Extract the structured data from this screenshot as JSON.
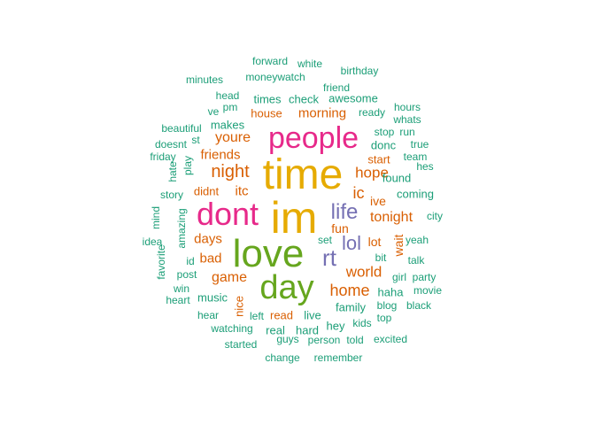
{
  "palette": {
    "teal": "#1b9e77",
    "orange": "#d95f02",
    "purple": "#7570b3",
    "magenta": "#e7298a",
    "green": "#66a61e",
    "gold": "#e6ab02"
  },
  "words": [
    {
      "text": "im",
      "color": "gold",
      "rank": 1
    },
    {
      "text": "time",
      "color": "gold",
      "rank": 2
    },
    {
      "text": "love",
      "color": "green",
      "rank": 3
    },
    {
      "text": "dont",
      "color": "magenta",
      "rank": 4
    },
    {
      "text": "day",
      "color": "green",
      "rank": 5
    },
    {
      "text": "people",
      "color": "magenta",
      "rank": 6
    },
    {
      "text": "rt",
      "color": "purple",
      "rank": 7
    },
    {
      "text": "life",
      "color": "purple",
      "rank": 8
    },
    {
      "text": "lol",
      "color": "purple",
      "rank": 9
    },
    {
      "text": "night",
      "color": "orange",
      "rank": 10
    },
    {
      "text": "home",
      "color": "orange",
      "rank": 11
    },
    {
      "text": "world",
      "color": "orange",
      "rank": 12
    },
    {
      "text": "hope",
      "color": "orange",
      "rank": 13
    },
    {
      "text": "tonight",
      "color": "orange",
      "rank": 14
    },
    {
      "text": "ic",
      "color": "orange",
      "rank": 15
    },
    {
      "text": "youre",
      "color": "orange",
      "rank": 16
    },
    {
      "text": "game",
      "color": "orange",
      "rank": 17
    },
    {
      "text": "days",
      "color": "orange",
      "rank": 18
    },
    {
      "text": "bad",
      "color": "orange",
      "rank": 19
    },
    {
      "text": "morning",
      "color": "orange",
      "rank": 20
    },
    {
      "text": "friends",
      "color": "orange",
      "rank": 21
    },
    {
      "text": "itc",
      "color": "orange",
      "rank": 22
    },
    {
      "text": "fun",
      "color": "orange",
      "rank": 23
    },
    {
      "text": "lot",
      "color": "orange",
      "rank": 24
    },
    {
      "text": "wait",
      "color": "orange",
      "rank": 25
    },
    {
      "text": "ive",
      "color": "orange",
      "rank": 26
    },
    {
      "text": "didnt",
      "color": "orange",
      "rank": 27
    },
    {
      "text": "house",
      "color": "orange",
      "rank": 28
    },
    {
      "text": "read",
      "color": "orange",
      "rank": 29
    },
    {
      "text": "nice",
      "color": "orange",
      "rank": 30
    },
    {
      "text": "start",
      "color": "orange",
      "rank": 31
    },
    {
      "text": "music",
      "color": "teal",
      "rank": 32
    },
    {
      "text": "family",
      "color": "teal",
      "rank": 33
    },
    {
      "text": "hard",
      "color": "teal",
      "rank": 34
    },
    {
      "text": "real",
      "color": "teal",
      "rank": 35
    },
    {
      "text": "live",
      "color": "teal",
      "rank": 36
    },
    {
      "text": "hey",
      "color": "teal",
      "rank": 37
    },
    {
      "text": "times",
      "color": "teal",
      "rank": 38
    },
    {
      "text": "check",
      "color": "teal",
      "rank": 39
    },
    {
      "text": "awesome",
      "color": "teal",
      "rank": 40
    },
    {
      "text": "makes",
      "color": "teal",
      "rank": 41
    },
    {
      "text": "amazing",
      "color": "teal",
      "rank": 42
    },
    {
      "text": "found",
      "color": "teal",
      "rank": 43
    },
    {
      "text": "coming",
      "color": "teal",
      "rank": 44
    },
    {
      "text": "haha",
      "color": "teal",
      "rank": 45
    },
    {
      "text": "donc",
      "color": "teal",
      "rank": 46
    },
    {
      "text": "stop",
      "color": "teal",
      "rank": 47
    },
    {
      "text": "run",
      "color": "teal",
      "rank": 48
    },
    {
      "text": "story",
      "color": "teal",
      "rank": 49
    },
    {
      "text": "left",
      "color": "teal",
      "rank": 50
    },
    {
      "text": "blog",
      "color": "teal",
      "rank": 51
    },
    {
      "text": "girl",
      "color": "teal",
      "rank": 52
    },
    {
      "text": "party",
      "color": "teal",
      "rank": 53
    },
    {
      "text": "kids",
      "color": "teal",
      "rank": 54
    },
    {
      "text": "post",
      "color": "teal",
      "rank": 55
    },
    {
      "text": "hear",
      "color": "teal",
      "rank": 56
    },
    {
      "text": "watching",
      "color": "teal",
      "rank": 57
    },
    {
      "text": "guys",
      "color": "teal",
      "rank": 58
    },
    {
      "text": "person",
      "color": "teal",
      "rank": 59
    },
    {
      "text": "told",
      "color": "teal",
      "rank": 60
    },
    {
      "text": "started",
      "color": "teal",
      "rank": 61
    },
    {
      "text": "excited",
      "color": "teal",
      "rank": 62
    },
    {
      "text": "change",
      "color": "teal",
      "rank": 63
    },
    {
      "text": "remember",
      "color": "teal",
      "rank": 64
    },
    {
      "text": "top",
      "color": "teal",
      "rank": 65
    },
    {
      "text": "black",
      "color": "teal",
      "rank": 66
    },
    {
      "text": "movie",
      "color": "teal",
      "rank": 67
    },
    {
      "text": "talk",
      "color": "teal",
      "rank": 68
    },
    {
      "text": "yeah",
      "color": "teal",
      "rank": 69
    },
    {
      "text": "bit",
      "color": "teal",
      "rank": 70
    },
    {
      "text": "set",
      "color": "teal",
      "rank": 71
    },
    {
      "text": "city",
      "color": "teal",
      "rank": 72
    },
    {
      "text": "team",
      "color": "teal",
      "rank": 73
    },
    {
      "text": "hes",
      "color": "teal",
      "rank": 74
    },
    {
      "text": "true",
      "color": "teal",
      "rank": 75
    },
    {
      "text": "whats",
      "color": "teal",
      "rank": 76
    },
    {
      "text": "hours",
      "color": "teal",
      "rank": 77
    },
    {
      "text": "ready",
      "color": "teal",
      "rank": 78
    },
    {
      "text": "friend",
      "color": "teal",
      "rank": 79
    },
    {
      "text": "birthday",
      "color": "teal",
      "rank": 80
    },
    {
      "text": "white",
      "color": "teal",
      "rank": 81
    },
    {
      "text": "forward",
      "color": "teal",
      "rank": 82
    },
    {
      "text": "moneywatch",
      "color": "teal",
      "rank": 83
    },
    {
      "text": "minutes",
      "color": "teal",
      "rank": 84
    },
    {
      "text": "head",
      "color": "teal",
      "rank": 85
    },
    {
      "text": "pm",
      "color": "teal",
      "rank": 86
    },
    {
      "text": "ve",
      "color": "teal",
      "rank": 87
    },
    {
      "text": "beautiful",
      "color": "teal",
      "rank": 88
    },
    {
      "text": "st",
      "color": "teal",
      "rank": 89
    },
    {
      "text": "doesnt",
      "color": "teal",
      "rank": 90
    },
    {
      "text": "friday",
      "color": "teal",
      "rank": 91
    },
    {
      "text": "play",
      "color": "teal",
      "rank": 92
    },
    {
      "text": "hate",
      "color": "teal",
      "rank": 93
    },
    {
      "text": "mind",
      "color": "teal",
      "rank": 94
    },
    {
      "text": "idea",
      "color": "teal",
      "rank": 95
    },
    {
      "text": "favorite",
      "color": "teal",
      "rank": 96
    },
    {
      "text": "id",
      "color": "teal",
      "rank": 97
    },
    {
      "text": "win",
      "color": "teal",
      "rank": 98
    },
    {
      "text": "heart",
      "color": "teal",
      "rank": 99
    }
  ]
}
